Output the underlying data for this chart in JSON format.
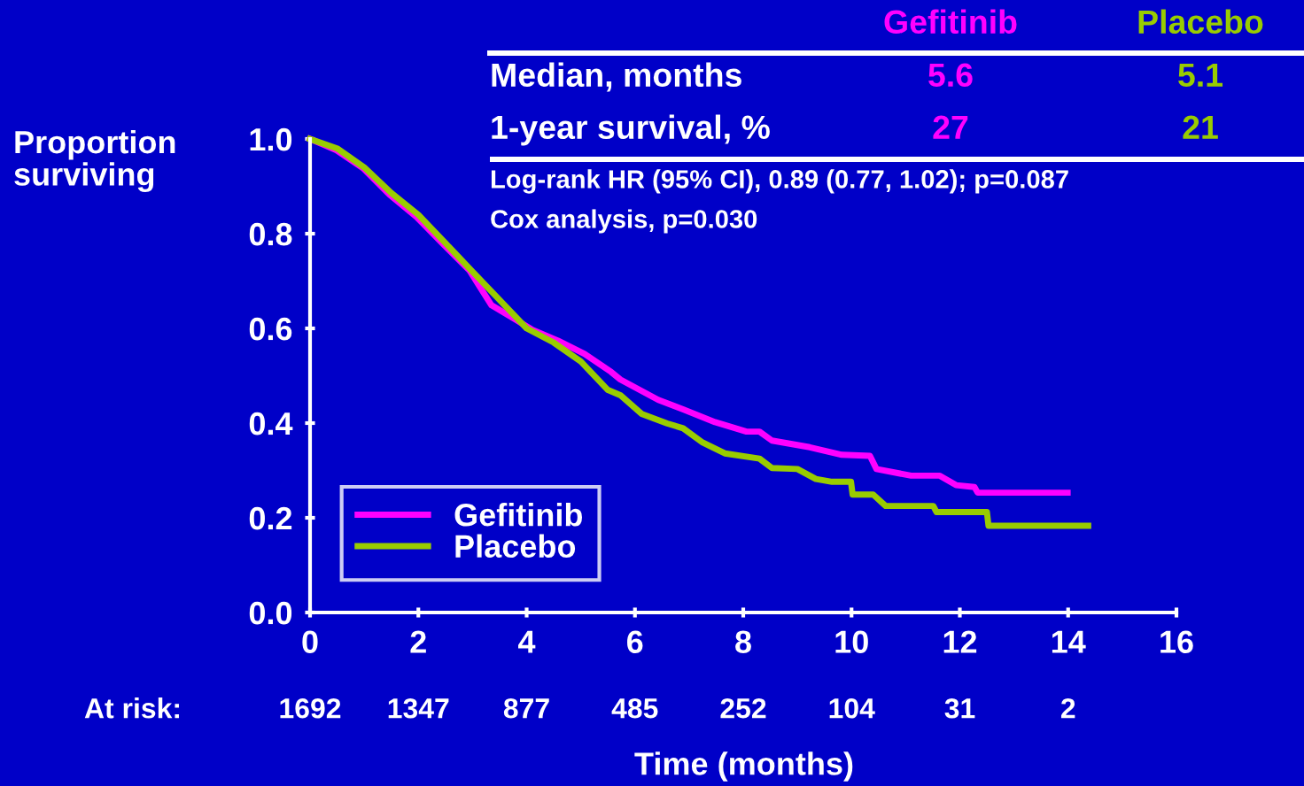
{
  "chart_data": {
    "type": "line",
    "ylabel": "Proportion surviving",
    "xlabel": "Time (months)",
    "xlim": [
      0,
      16
    ],
    "xticks": [
      0,
      2,
      4,
      6,
      8,
      10,
      12,
      14,
      16
    ],
    "ylim": [
      0,
      1.0
    ],
    "yticks": [
      {
        "value": 0,
        "label": "0.0"
      },
      0.2,
      0.4,
      0.6,
      0.8,
      {
        "value": 1.0,
        "label": "1.0"
      }
    ],
    "grid": false,
    "legend": "bottom left",
    "series": [
      {
        "name": "Gefitinib",
        "color": "#ff00ff",
        "x": [
          0,
          0.49,
          0.98,
          1.47,
          1.96,
          2.45,
          2.94,
          3.35,
          3.76,
          4.09,
          4.58,
          5.07,
          5.56,
          5.73,
          6.43,
          6.89,
          7.48,
          8.06,
          8.3,
          8.53,
          9.23,
          9.82,
          10.34,
          10.46,
          11.1,
          11.63,
          11.93,
          12.27,
          12.33,
          13.99
        ],
        "values": [
          1.0,
          0.976,
          0.938,
          0.882,
          0.836,
          0.779,
          0.723,
          0.649,
          0.621,
          0.598,
          0.574,
          0.546,
          0.508,
          0.492,
          0.449,
          0.429,
          0.402,
          0.382,
          0.382,
          0.363,
          0.349,
          0.333,
          0.331,
          0.303,
          0.289,
          0.289,
          0.269,
          0.265,
          0.253,
          0.253
        ]
      },
      {
        "name": "Placebo",
        "color": "#99cc00",
        "x": [
          0,
          0.5,
          1,
          1.5,
          2,
          2.5,
          3,
          3.5,
          4,
          4.5,
          5,
          5.5,
          5.73,
          6.13,
          6.6,
          6.89,
          7.25,
          7.66,
          8.3,
          8.53,
          9.0,
          9.34,
          9.64,
          9.99,
          10.02,
          10.4,
          10.63,
          11.51,
          11.57,
          12.5,
          12.53,
          14.37
        ],
        "values": [
          1.0,
          0.98,
          0.94,
          0.886,
          0.84,
          0.78,
          0.72,
          0.66,
          0.6,
          0.57,
          0.53,
          0.47,
          0.459,
          0.419,
          0.399,
          0.389,
          0.359,
          0.336,
          0.325,
          0.305,
          0.303,
          0.282,
          0.276,
          0.276,
          0.249,
          0.249,
          0.225,
          0.225,
          0.212,
          0.212,
          0.183,
          0.183
        ]
      }
    ],
    "annotations": [
      "Gefitinib",
      "Placebo",
      "Median, months",
      "5.6",
      "5.1",
      "1-year survival, %",
      "27",
      "21",
      "Log-rank HR (95% CI), 0.89 (0.77, 1.02); p=0.087",
      "Cox analysis, p=0.030",
      "At risk:",
      "1692",
      "1347",
      "877",
      "485",
      "252",
      "104",
      "31",
      "2"
    ]
  }
}
